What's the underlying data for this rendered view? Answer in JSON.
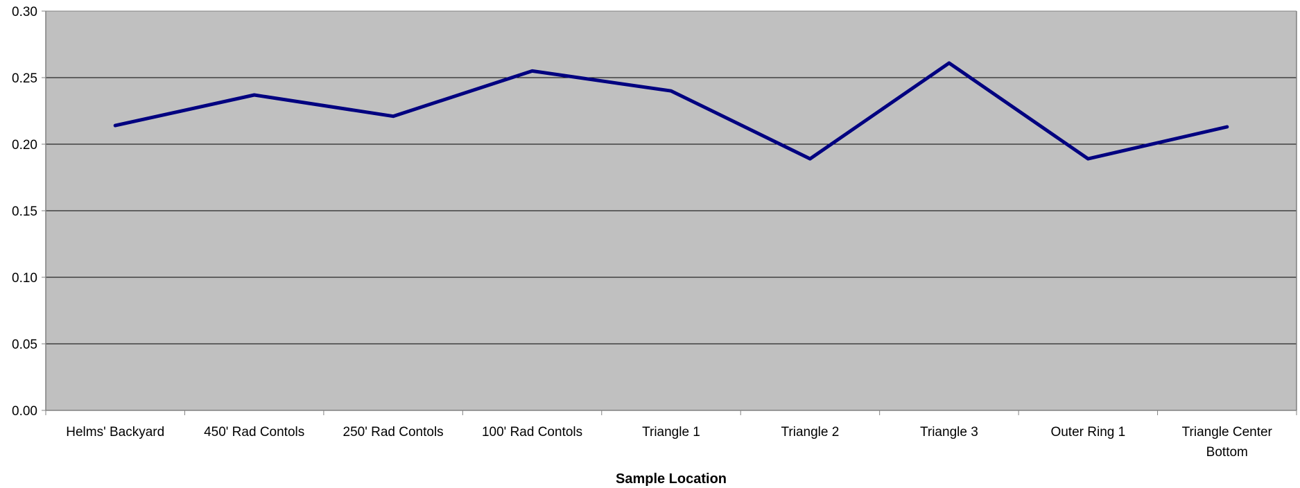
{
  "chart_data": {
    "type": "line",
    "title": "",
    "xlabel": "Sample Location",
    "ylabel": "",
    "categories": [
      "Helms' Backyard",
      "450' Rad Contols",
      "250' Rad Contols",
      "100' Rad Contols",
      "Triangle 1",
      "Triangle 2",
      "Triangle 3",
      "Outer Ring 1",
      "Triangle Center Bottom"
    ],
    "category_lines": [
      [
        "Helms' Backyard"
      ],
      [
        "450' Rad Contols"
      ],
      [
        "250' Rad Contols"
      ],
      [
        "100' Rad Contols"
      ],
      [
        "Triangle 1"
      ],
      [
        "Triangle 2"
      ],
      [
        "Triangle 3"
      ],
      [
        "Outer Ring 1"
      ],
      [
        "Triangle Center",
        "Bottom"
      ]
    ],
    "series": [
      {
        "values": [
          0.214,
          0.237,
          0.221,
          0.255,
          0.24,
          0.189,
          0.261,
          0.189,
          0.213
        ]
      }
    ],
    "ylim": [
      0,
      0.3
    ],
    "yticks": [
      "0.00",
      "0.05",
      "0.10",
      "0.15",
      "0.20",
      "0.25",
      "0.30"
    ],
    "grid": true,
    "legend": "none",
    "colors": {
      "plot_background": "#c0c0c0",
      "line": "#000080",
      "gridline": "#000000",
      "axis": "#808080"
    }
  }
}
